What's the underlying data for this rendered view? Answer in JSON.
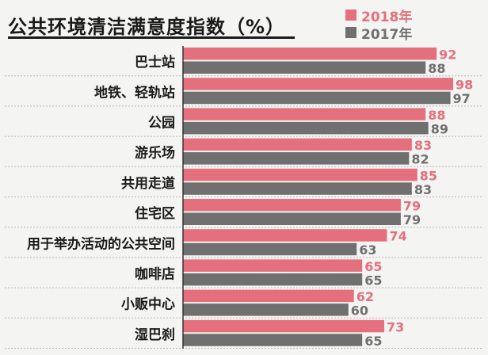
{
  "title": "公共环境清洁满意度指数（%）",
  "legend": [
    {
      "label": "2018年",
      "color": "#e5707d"
    },
    {
      "label": "2017年",
      "color": "#707070"
    }
  ],
  "chart_data": {
    "type": "bar",
    "orientation": "horizontal",
    "title": "公共环境清洁满意度指数（%）",
    "categories": [
      "巴士站",
      "地铁、轻轨站",
      "公园",
      "游乐场",
      "共用走道",
      "住宅区",
      "用于举办活动的公共空间",
      "咖啡店",
      "小贩中心",
      "湿巴刹"
    ],
    "series": [
      {
        "name": "2018年",
        "color": "#e5707d",
        "values": [
          92,
          98,
          88,
          83,
          85,
          79,
          74,
          65,
          62,
          73
        ]
      },
      {
        "name": "2017年",
        "color": "#707070",
        "values": [
          88,
          97,
          89,
          82,
          83,
          79,
          63,
          65,
          60,
          65
        ]
      }
    ],
    "legend_position": "top-right",
    "grid": false
  }
}
